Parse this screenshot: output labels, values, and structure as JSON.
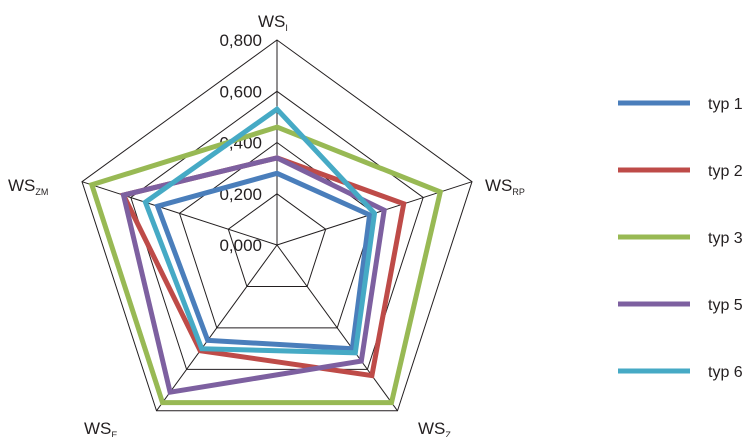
{
  "chart_data": {
    "type": "radar",
    "axes": [
      {
        "main": "WS",
        "sub": "I"
      },
      {
        "main": "WS",
        "sub": "RP"
      },
      {
        "main": "WS",
        "sub": "Z"
      },
      {
        "main": "WS",
        "sub": "E"
      },
      {
        "main": "WS",
        "sub": "ZM"
      }
    ],
    "ticks": [
      0,
      0.2,
      0.4,
      0.6,
      0.8
    ],
    "tick_labels": [
      "0,000",
      "0,200",
      "0,400",
      "0,600",
      "0,800"
    ],
    "rmax": 0.8,
    "grid": true,
    "legend_position": "right",
    "series": [
      {
        "name": "typ 1",
        "color": "#4a7ebb",
        "values": [
          0.28,
          0.38,
          0.5,
          0.46,
          0.49
        ]
      },
      {
        "name": "typ 2",
        "color": "#be4b48",
        "values": [
          0.34,
          0.52,
          0.63,
          0.51,
          0.63
        ]
      },
      {
        "name": "typ 3",
        "color": "#98b954",
        "values": [
          0.46,
          0.67,
          0.76,
          0.76,
          0.76
        ]
      },
      {
        "name": "typ 5",
        "color": "#7d60a0",
        "values": [
          0.34,
          0.44,
          0.56,
          0.71,
          0.63
        ]
      },
      {
        "name": "typ 6",
        "color": "#46aac5",
        "values": [
          0.53,
          0.4,
          0.52,
          0.5,
          0.54
        ]
      }
    ]
  }
}
